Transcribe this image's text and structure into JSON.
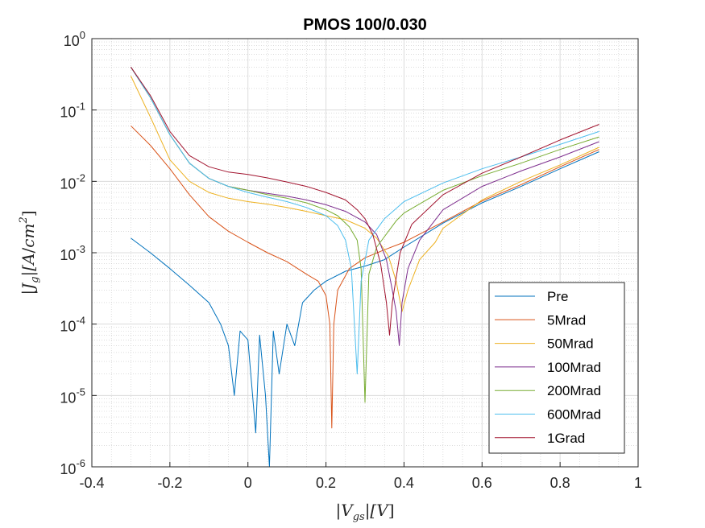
{
  "chart_data": {
    "type": "line",
    "title": "PMOS 100/0.030",
    "xlabel": "|V_gs| [V]",
    "ylabel": "|J_g| [A/cm^2]",
    "xlim": [
      -0.4,
      1.0
    ],
    "ylim": [
      1e-06,
      1
    ],
    "yscale": "log",
    "grid": true,
    "minor_grid": true,
    "legend_position": "lower-right",
    "x_ticks": [
      -0.4,
      -0.2,
      0,
      0.2,
      0.4,
      0.6,
      0.8,
      1.0
    ],
    "x_tick_labels": [
      "-0.4",
      "-0.2",
      "0",
      "0.2",
      "0.4",
      "0.6",
      "0.8",
      "1"
    ],
    "y_ticks": [
      {
        "base": "10",
        "exp": "0",
        "value": 1
      },
      {
        "base": "10",
        "exp": "-1",
        "value": 0.1
      },
      {
        "base": "10",
        "exp": "-2",
        "value": 0.01
      },
      {
        "base": "10",
        "exp": "-3",
        "value": 0.001
      },
      {
        "base": "10",
        "exp": "-4",
        "value": 0.0001
      },
      {
        "base": "10",
        "exp": "-5",
        "value": 1e-05
      },
      {
        "base": "10",
        "exp": "-6",
        "value": 1e-06
      }
    ],
    "series": [
      {
        "name": "Pre",
        "color": "#0072BD",
        "points": [
          [
            -0.3,
            0.0016
          ],
          [
            -0.25,
            0.001
          ],
          [
            -0.2,
            0.0006
          ],
          [
            -0.15,
            0.00035
          ],
          [
            -0.1,
            0.0002
          ],
          [
            -0.07,
            0.0001
          ],
          [
            -0.05,
            5e-05
          ],
          [
            -0.035,
            1e-05
          ],
          [
            -0.02,
            8e-05
          ],
          [
            0.0,
            6e-05
          ],
          [
            0.02,
            3e-06
          ],
          [
            0.03,
            7e-05
          ],
          [
            0.045,
            1e-05
          ],
          [
            0.055,
            1e-06
          ],
          [
            0.065,
            8e-05
          ],
          [
            0.08,
            2e-05
          ],
          [
            0.1,
            0.0001
          ],
          [
            0.12,
            5e-05
          ],
          [
            0.14,
            0.0002
          ],
          [
            0.17,
            0.0003
          ],
          [
            0.2,
            0.0004
          ],
          [
            0.25,
            0.00055
          ],
          [
            0.3,
            0.00065
          ],
          [
            0.35,
            0.0008
          ],
          [
            0.4,
            0.0012
          ],
          [
            0.5,
            0.0026
          ],
          [
            0.6,
            0.005
          ],
          [
            0.7,
            0.0085
          ],
          [
            0.8,
            0.015
          ],
          [
            0.9,
            0.026
          ]
        ]
      },
      {
        "name": "5Mrad",
        "color": "#D95319",
        "points": [
          [
            -0.3,
            0.06
          ],
          [
            -0.25,
            0.032
          ],
          [
            -0.2,
            0.015
          ],
          [
            -0.15,
            0.0065
          ],
          [
            -0.1,
            0.0032
          ],
          [
            -0.05,
            0.002
          ],
          [
            0.0,
            0.0014
          ],
          [
            0.05,
            0.001
          ],
          [
            0.1,
            0.00075
          ],
          [
            0.15,
            0.0005
          ],
          [
            0.18,
            0.0004
          ],
          [
            0.2,
            0.00025
          ],
          [
            0.21,
            0.0001
          ],
          [
            0.215,
            3.5e-06
          ],
          [
            0.22,
            0.0001
          ],
          [
            0.23,
            0.0003
          ],
          [
            0.26,
            0.0006
          ],
          [
            0.3,
            0.00085
          ],
          [
            0.35,
            0.0011
          ],
          [
            0.4,
            0.0014
          ],
          [
            0.5,
            0.0027
          ],
          [
            0.6,
            0.0053
          ],
          [
            0.7,
            0.009
          ],
          [
            0.8,
            0.016
          ],
          [
            0.9,
            0.028
          ]
        ]
      },
      {
        "name": "50Mrad",
        "color": "#EDB120",
        "points": [
          [
            -0.3,
            0.3
          ],
          [
            -0.25,
            0.08
          ],
          [
            -0.2,
            0.02
          ],
          [
            -0.15,
            0.01
          ],
          [
            -0.1,
            0.007
          ],
          [
            -0.05,
            0.0058
          ],
          [
            0.0,
            0.0052
          ],
          [
            0.05,
            0.0048
          ],
          [
            0.1,
            0.0043
          ],
          [
            0.15,
            0.0038
          ],
          [
            0.2,
            0.0033
          ],
          [
            0.25,
            0.0029
          ],
          [
            0.3,
            0.0022
          ],
          [
            0.33,
            0.0016
          ],
          [
            0.36,
            0.0009
          ],
          [
            0.38,
            0.0004
          ],
          [
            0.395,
            0.00015
          ],
          [
            0.41,
            0.0003
          ],
          [
            0.44,
            0.0008
          ],
          [
            0.48,
            0.0014
          ],
          [
            0.5,
            0.0022
          ],
          [
            0.6,
            0.0055
          ],
          [
            0.7,
            0.01
          ],
          [
            0.8,
            0.017
          ],
          [
            0.9,
            0.03
          ]
        ]
      },
      {
        "name": "100Mrad",
        "color": "#7E2F8E",
        "points": [
          [
            -0.3,
            0.4
          ],
          [
            -0.25,
            0.15
          ],
          [
            -0.2,
            0.045
          ],
          [
            -0.15,
            0.018
          ],
          [
            -0.1,
            0.011
          ],
          [
            -0.05,
            0.0085
          ],
          [
            0.0,
            0.0075
          ],
          [
            0.05,
            0.0068
          ],
          [
            0.1,
            0.0062
          ],
          [
            0.15,
            0.0055
          ],
          [
            0.2,
            0.0047
          ],
          [
            0.25,
            0.0038
          ],
          [
            0.3,
            0.0027
          ],
          [
            0.33,
            0.0018
          ],
          [
            0.355,
            0.0008
          ],
          [
            0.37,
            0.0003
          ],
          [
            0.38,
            0.00015
          ],
          [
            0.388,
            5e-05
          ],
          [
            0.395,
            0.0002
          ],
          [
            0.41,
            0.0006
          ],
          [
            0.44,
            0.0015
          ],
          [
            0.5,
            0.004
          ],
          [
            0.6,
            0.0085
          ],
          [
            0.7,
            0.014
          ],
          [
            0.8,
            0.022
          ],
          [
            0.9,
            0.036
          ]
        ]
      },
      {
        "name": "200Mrad",
        "color": "#77AC30",
        "points": [
          [
            -0.3,
            0.4
          ],
          [
            -0.25,
            0.15
          ],
          [
            -0.2,
            0.045
          ],
          [
            -0.15,
            0.018
          ],
          [
            -0.1,
            0.011
          ],
          [
            -0.05,
            0.0085
          ],
          [
            0.0,
            0.0075
          ],
          [
            0.05,
            0.0065
          ],
          [
            0.1,
            0.0058
          ],
          [
            0.15,
            0.005
          ],
          [
            0.2,
            0.004
          ],
          [
            0.23,
            0.0033
          ],
          [
            0.26,
            0.0023
          ],
          [
            0.28,
            0.0015
          ],
          [
            0.29,
            0.0006
          ],
          [
            0.3,
            8e-06
          ],
          [
            0.31,
            0.0005
          ],
          [
            0.33,
            0.0012
          ],
          [
            0.38,
            0.0028
          ],
          [
            0.4,
            0.0036
          ],
          [
            0.5,
            0.0075
          ],
          [
            0.6,
            0.012
          ],
          [
            0.7,
            0.018
          ],
          [
            0.8,
            0.028
          ],
          [
            0.9,
            0.042
          ]
        ]
      },
      {
        "name": "600Mrad",
        "color": "#4DBEEE",
        "points": [
          [
            -0.3,
            0.4
          ],
          [
            -0.25,
            0.15
          ],
          [
            -0.2,
            0.045
          ],
          [
            -0.15,
            0.018
          ],
          [
            -0.1,
            0.011
          ],
          [
            -0.05,
            0.0085
          ],
          [
            0.0,
            0.007
          ],
          [
            0.05,
            0.006
          ],
          [
            0.1,
            0.0052
          ],
          [
            0.15,
            0.0043
          ],
          [
            0.2,
            0.0033
          ],
          [
            0.23,
            0.0024
          ],
          [
            0.25,
            0.0015
          ],
          [
            0.265,
            0.0006
          ],
          [
            0.28,
            2e-05
          ],
          [
            0.29,
            0.0004
          ],
          [
            0.31,
            0.0015
          ],
          [
            0.35,
            0.003
          ],
          [
            0.4,
            0.0052
          ],
          [
            0.5,
            0.0095
          ],
          [
            0.6,
            0.015
          ],
          [
            0.7,
            0.022
          ],
          [
            0.8,
            0.033
          ],
          [
            0.9,
            0.05
          ]
        ]
      },
      {
        "name": "1Grad",
        "color": "#A2142F",
        "points": [
          [
            -0.3,
            0.4
          ],
          [
            -0.25,
            0.16
          ],
          [
            -0.2,
            0.05
          ],
          [
            -0.15,
            0.023
          ],
          [
            -0.1,
            0.016
          ],
          [
            -0.05,
            0.0135
          ],
          [
            0.0,
            0.0125
          ],
          [
            0.05,
            0.0112
          ],
          [
            0.1,
            0.0098
          ],
          [
            0.15,
            0.0085
          ],
          [
            0.2,
            0.007
          ],
          [
            0.25,
            0.0055
          ],
          [
            0.28,
            0.004
          ],
          [
            0.3,
            0.003
          ],
          [
            0.32,
            0.0018
          ],
          [
            0.34,
            0.0007
          ],
          [
            0.355,
            0.0002
          ],
          [
            0.363,
            7e-05
          ],
          [
            0.37,
            0.0002
          ],
          [
            0.39,
            0.001
          ],
          [
            0.42,
            0.0025
          ],
          [
            0.5,
            0.0065
          ],
          [
            0.6,
            0.013
          ],
          [
            0.7,
            0.022
          ],
          [
            0.8,
            0.038
          ],
          [
            0.9,
            0.063
          ]
        ]
      }
    ]
  }
}
